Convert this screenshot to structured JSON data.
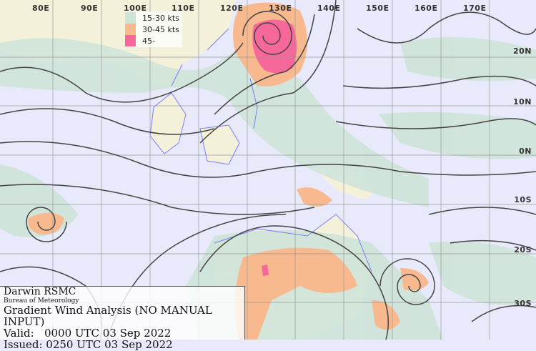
{
  "map": {
    "longitude_labels": [
      "80E",
      "90E",
      "100E",
      "110E",
      "120E",
      "130E",
      "140E",
      "150E",
      "160E",
      "170E"
    ],
    "latitude_labels": [
      "20N",
      "10N",
      "0N",
      "10S",
      "20S",
      "30S"
    ],
    "colors": {
      "ocean": "#e8eafb",
      "land": "#f4f1da",
      "coast": "#7b7bff",
      "streamline": "#444444",
      "grid": "#999999"
    }
  },
  "legend": {
    "items": [
      {
        "label": "15-30 kts",
        "color": "#cfe4d8"
      },
      {
        "label": "30-45 kts",
        "color": "#f8b98e"
      },
      {
        "label": "45-",
        "color": "#f6679a"
      }
    ]
  },
  "info": {
    "center": "Darwin RSMC",
    "agency": "Bureau of Meteorology",
    "product": "Gradient Wind Analysis (NO MANUAL INPUT)",
    "valid": "Valid:   0000 UTC 03 Sep 2022",
    "issued": "Issued: 0250 UTC 03 Sep 2022"
  }
}
